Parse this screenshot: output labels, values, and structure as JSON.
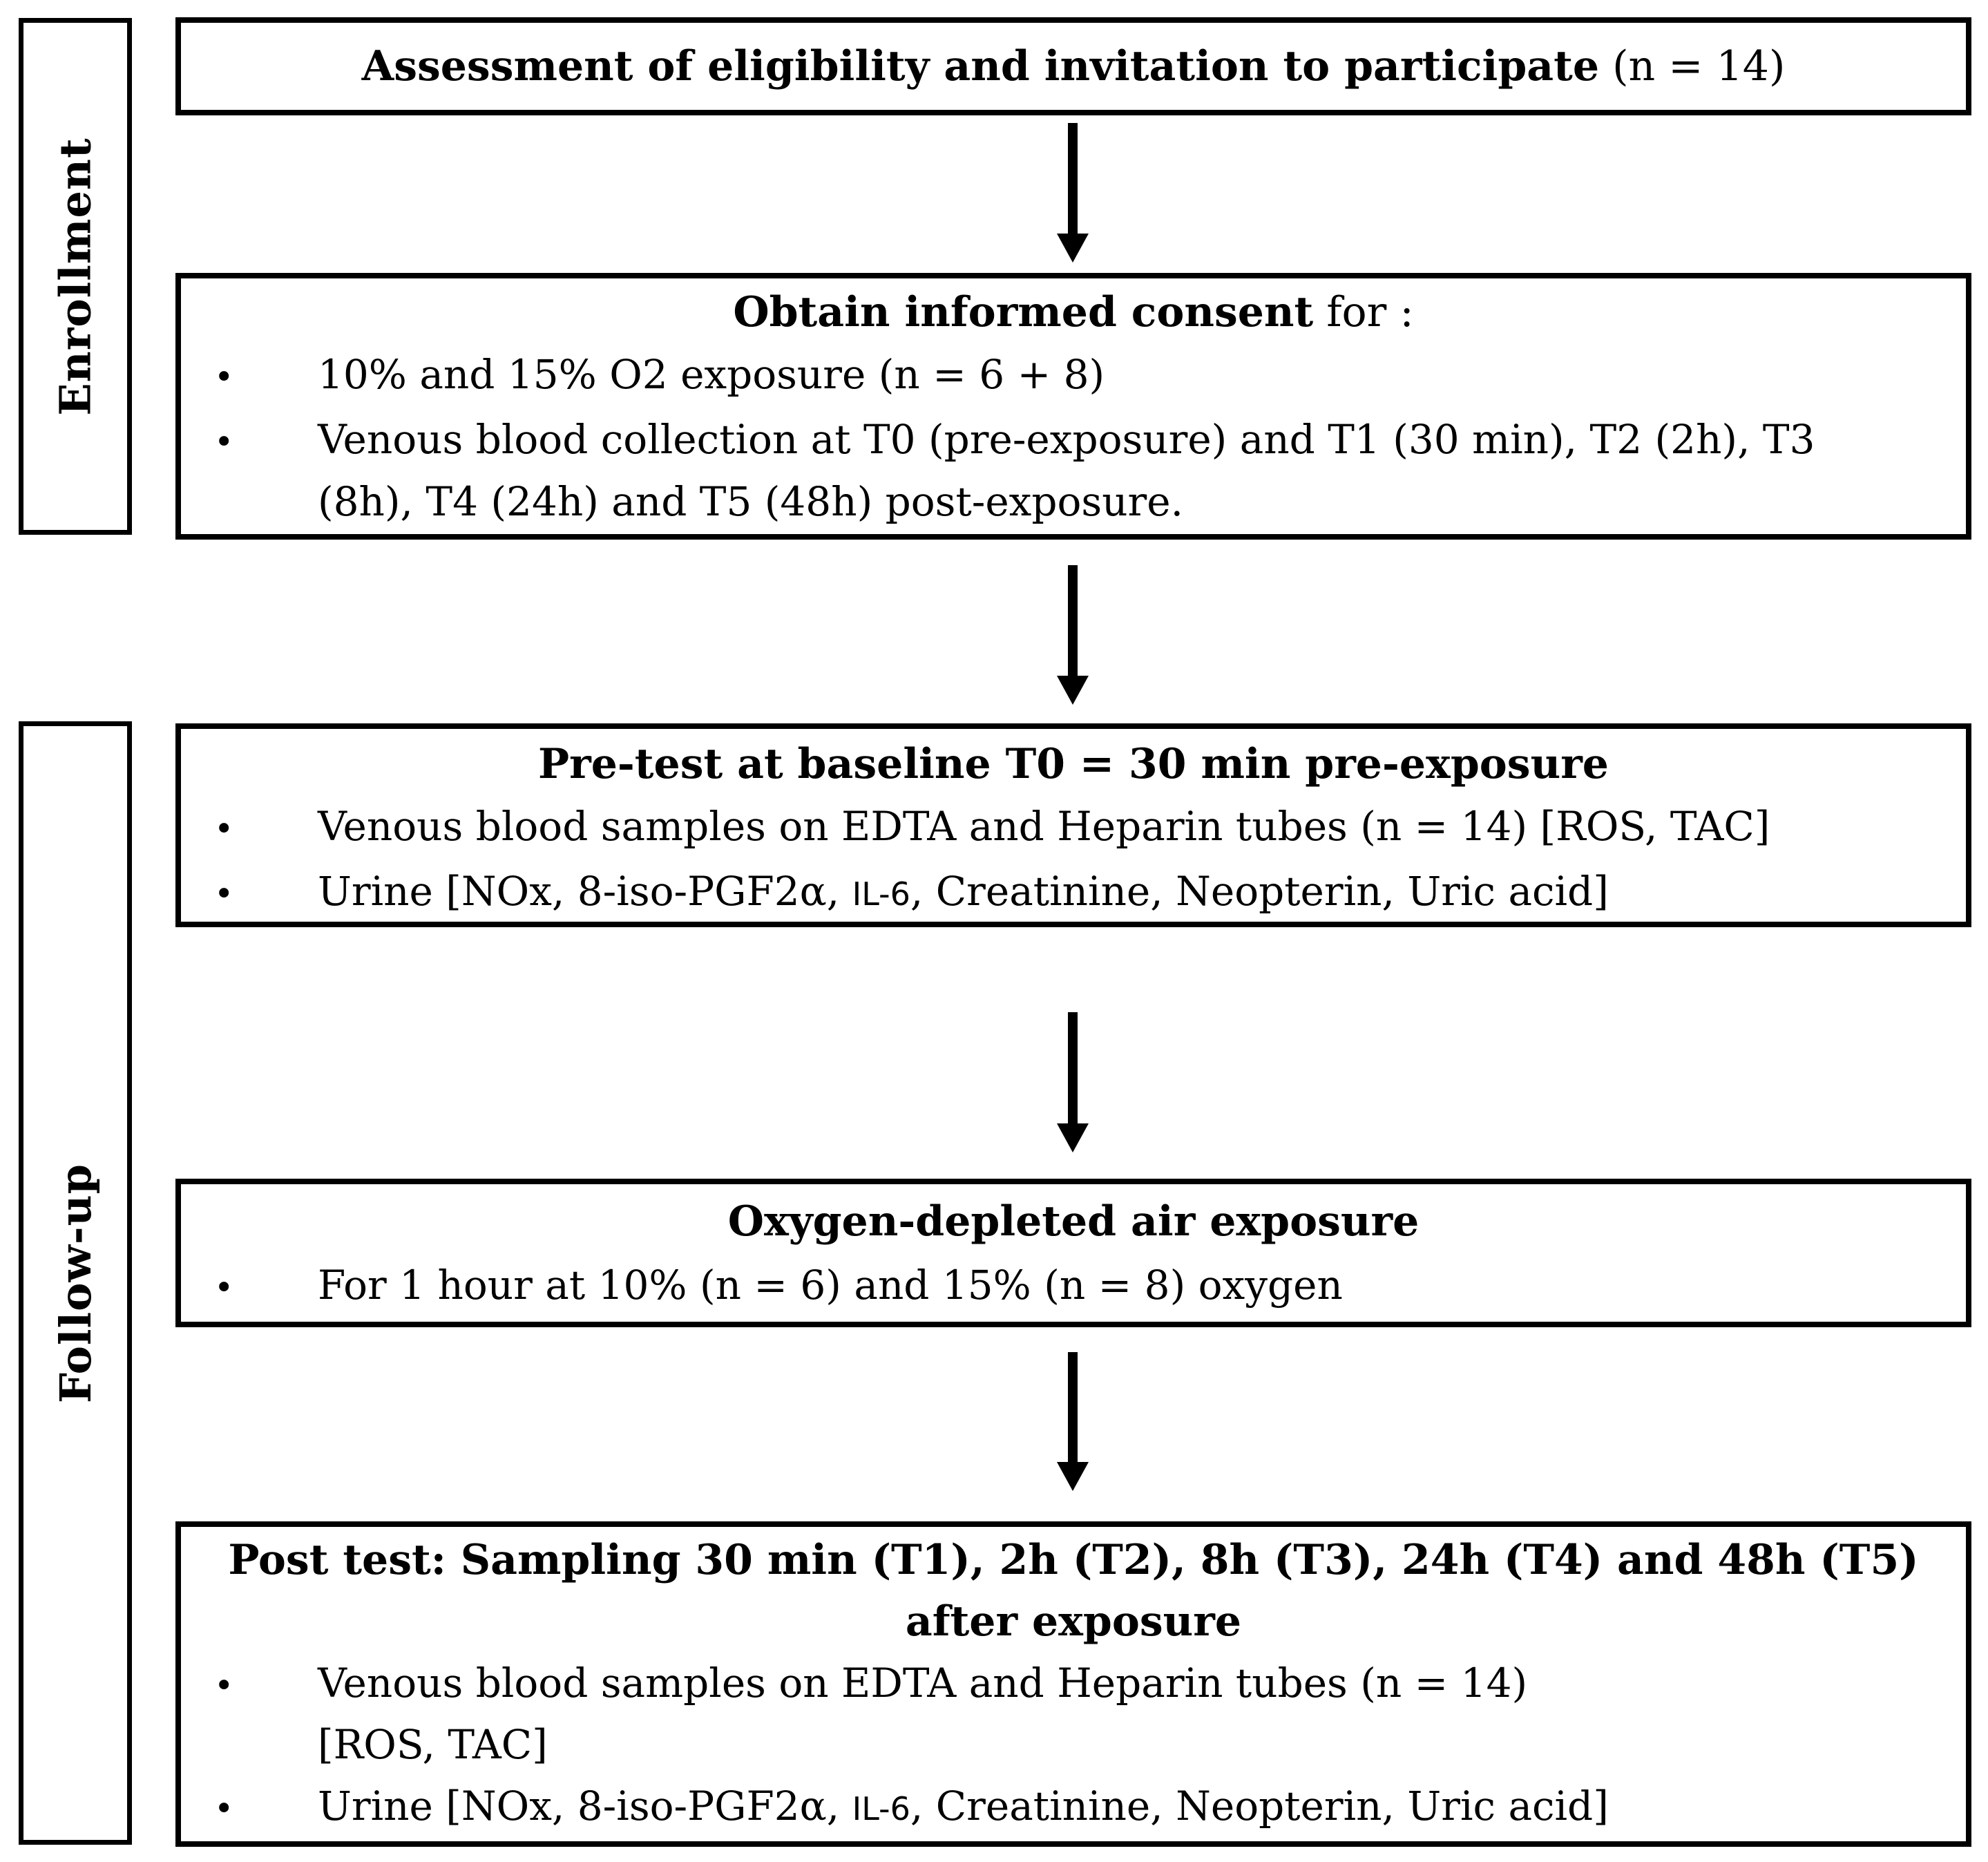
{
  "figure": {
    "bullet_char": "•",
    "colors": {
      "border": "#000000",
      "text": "#000000",
      "background": "#ffffff"
    },
    "stages": [
      {
        "label": "Enrollment"
      },
      {
        "label": "Follow-up"
      }
    ],
    "boxes": [
      {
        "title_bold": "Assessment of eligibility and invitation to participate",
        "title_regular": " (n = 14)"
      },
      {
        "title_bold": "Obtain informed consent",
        "title_regular": " for :",
        "bullets": [
          {
            "text": "10% and 15% O2 exposure (n = 6 + 8)"
          },
          {
            "text": "Venous blood collection at T0 (pre-exposure) and T1 (30 min), T2 (2h), T3\n(8h), T4 (24h) and T5 (48h) post-exposure."
          }
        ]
      },
      {
        "title_bold": "Pre-test at baseline T0 = 30 min pre-exposure",
        "bullets": [
          {
            "text": "Venous blood samples on EDTA and Heparin tubes (n = 14) [ROS, TAC]"
          },
          {
            "pre": "Urine [NOx, 8-iso-PGF2α, ",
            "small": "IL-6",
            "post": ", Creatinine, Neopterin, Uric acid]"
          }
        ]
      },
      {
        "title_bold": "Oxygen-depleted air exposure",
        "bullets": [
          {
            "text": "For 1 hour at 10% (n = 6) and 15% (n = 8) oxygen"
          }
        ]
      },
      {
        "title_bold": "Post test: Sampling 30 min (T1), 2h (T2), 8h (T3), 24h (T4) and 48h (T5)\nafter exposure",
        "bullets": [
          {
            "text": "Venous blood samples on EDTA and Heparin tubes (n = 14)\n[ROS, TAC]"
          },
          {
            "pre": "Urine [NOx, 8-iso-PGF2α, ",
            "small": "IL-6",
            "post": ", Creatinine, Neopterin, Uric acid]"
          }
        ]
      }
    ]
  }
}
